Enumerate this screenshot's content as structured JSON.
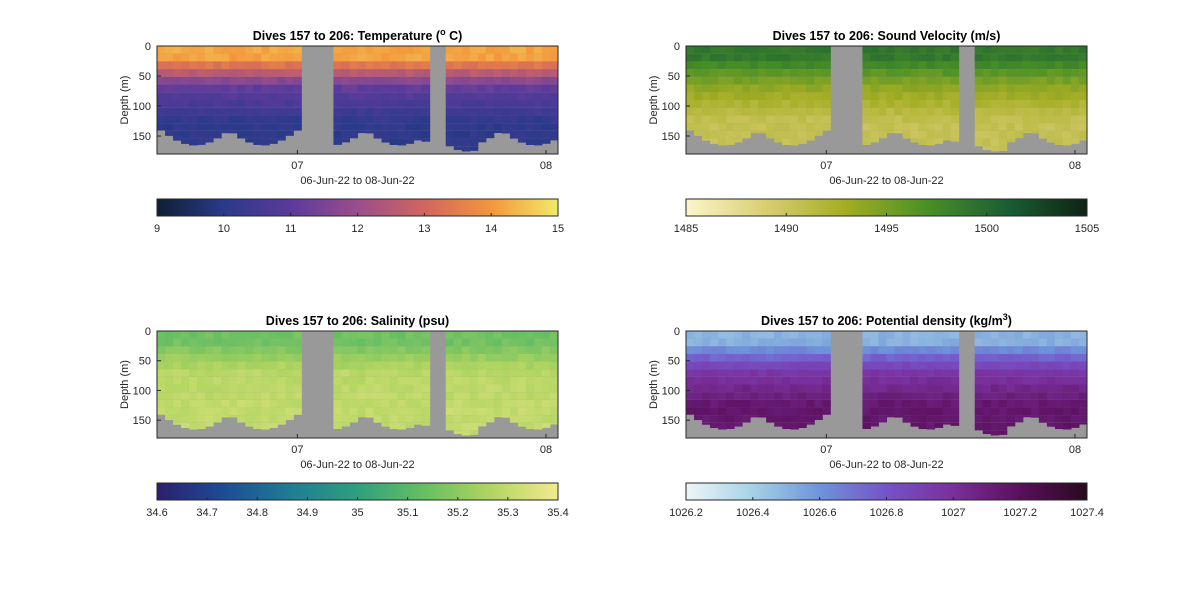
{
  "chart_data": [
    {
      "type": "heatmap",
      "title_main": "Dives 157 to 206: Temperature (",
      "title_sup": "o",
      "title_tail": " C)",
      "ylabel": "Depth (m)",
      "xlabel": "06-Jun-22 to 08-Jun-22",
      "x_tick_labels": [
        "07",
        "08"
      ],
      "y_tick_labels": [
        "0",
        "50",
        "100",
        "150"
      ],
      "ylim": [
        0,
        180
      ],
      "colorbar": {
        "ticks": [
          "9",
          "10",
          "11",
          "12",
          "13",
          "14",
          "15"
        ],
        "range": [
          9,
          15
        ],
        "colors": [
          "#0e1f33",
          "#2a3a8a",
          "#5b3a9c",
          "#9a4e8c",
          "#d2655f",
          "#f3963d",
          "#f2ea68"
        ]
      },
      "profile": {
        "surface": 14.2,
        "mid": 11.2,
        "deep": 10.1
      }
    },
    {
      "type": "heatmap",
      "title_main": "Dives 157 to 206: Sound Velocity (m/s)",
      "title_sup": "",
      "title_tail": "",
      "ylabel": "Depth (m)",
      "xlabel": "06-Jun-22 to 08-Jun-22",
      "x_tick_labels": [
        "07",
        "08"
      ],
      "y_tick_labels": [
        "0",
        "50",
        "100",
        "150"
      ],
      "ylim": [
        0,
        180
      ],
      "colorbar": {
        "ticks": [
          "1485",
          "1490",
          "1495",
          "1500",
          "1505"
        ],
        "range": [
          1485,
          1505
        ],
        "colors": [
          "#fbf7c8",
          "#d9cd72",
          "#a2ad22",
          "#4a9026",
          "#1a5e34",
          "#0e2314"
        ]
      },
      "profile": {
        "surface": 1499,
        "mid": 1494,
        "deep": 1490.5
      }
    },
    {
      "type": "heatmap",
      "title_main": "Dives 157 to 206: Salinity (psu)",
      "title_sup": "",
      "title_tail": "",
      "ylabel": "Depth (m)",
      "xlabel": "06-Jun-22 to 08-Jun-22",
      "x_tick_labels": [
        "07",
        "08"
      ],
      "y_tick_labels": [
        "0",
        "50",
        "100",
        "150"
      ],
      "ylim": [
        0,
        180
      ],
      "colorbar": {
        "ticks": [
          "34.6",
          "34.7",
          "34.8",
          "34.9",
          "35",
          "35.1",
          "35.2",
          "35.3",
          "35.4"
        ],
        "range": [
          34.6,
          35.4
        ],
        "colors": [
          "#2b1f6e",
          "#1d4c97",
          "#1f7d94",
          "#2f9f7e",
          "#66bf62",
          "#b2d561",
          "#f2e98f"
        ]
      },
      "profile": {
        "surface": 35.15,
        "mid": 35.28,
        "deep": 35.3
      }
    },
    {
      "type": "heatmap",
      "title_main": "Dives 157 to 206: Potential density (kg/m",
      "title_sup": "3",
      "title_tail": ")",
      "ylabel": "Depth (m)",
      "xlabel": "06-Jun-22 to 08-Jun-22",
      "x_tick_labels": [
        "07",
        "08"
      ],
      "y_tick_labels": [
        "0",
        "50",
        "100",
        "150"
      ],
      "ylim": [
        0,
        180
      ],
      "colorbar": {
        "ticks": [
          "1026.2",
          "1026.4",
          "1026.6",
          "1026.8",
          "1027",
          "1027.2",
          "1027.4"
        ],
        "range": [
          1026.2,
          1027.4
        ],
        "colors": [
          "#eef6f7",
          "#a6d1e6",
          "#6d94db",
          "#7553c8",
          "#7a2f9c",
          "#5a0f5c",
          "#280a1f"
        ]
      },
      "profile": {
        "surface": 1026.5,
        "mid": 1026.95,
        "deep": 1027.15
      }
    }
  ]
}
